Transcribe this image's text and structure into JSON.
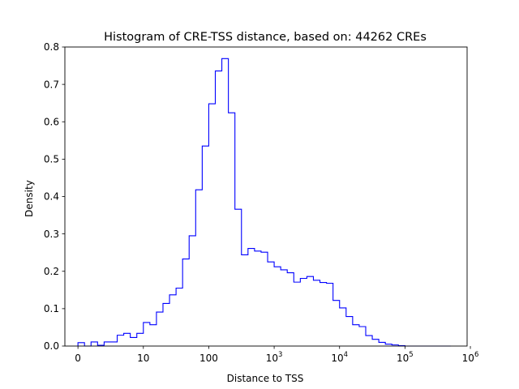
{
  "chart_data": {
    "type": "bar",
    "title": "Histogram of CRE-TSS distance, based on: 44262 CREs",
    "xlabel": "Distance to TSS",
    "ylabel": "Density",
    "ylim": [
      0,
      0.8
    ],
    "xlim": [
      -0.2,
      5.95
    ],
    "x_scale": "symlog",
    "histtype": "step",
    "color": "#0000ff",
    "grid": false,
    "x_ticks": [
      {
        "value": 0,
        "label": "0"
      },
      {
        "value": 10,
        "label": "10"
      },
      {
        "value": 100,
        "label": "100"
      },
      {
        "value": 1000,
        "label": "10",
        "exponent": "3"
      },
      {
        "value": 10000,
        "label": "10",
        "exponent": "4"
      },
      {
        "value": 100000,
        "label": "10",
        "exponent": "5"
      },
      {
        "value": 1000000,
        "label": "10",
        "exponent": "6"
      }
    ],
    "y_ticks": [
      "0.0",
      "0.1",
      "0.2",
      "0.3",
      "0.4",
      "0.5",
      "0.6",
      "0.7",
      "0.8"
    ],
    "bin_edges_log10": [
      0,
      0.1,
      0.2,
      0.3,
      0.4,
      0.5,
      0.6,
      0.7,
      0.8,
      0.9,
      1.0,
      1.1,
      1.2,
      1.3,
      1.4,
      1.5,
      1.6,
      1.7,
      1.8,
      1.9,
      2.0,
      2.1,
      2.2,
      2.3,
      2.4,
      2.5,
      2.6,
      2.7,
      2.8,
      2.9,
      3.0,
      3.1,
      3.2,
      3.3,
      3.4,
      3.5,
      3.6,
      3.7,
      3.8,
      3.9,
      4.0,
      4.1,
      4.2,
      4.3,
      4.4,
      4.5,
      4.6,
      4.7,
      4.8,
      4.9,
      5.0,
      5.1,
      5.2,
      5.3,
      5.4,
      5.5,
      5.6,
      5.7
    ],
    "values": [
      0.009,
      0.0,
      0.011,
      0.002,
      0.011,
      0.011,
      0.029,
      0.034,
      0.023,
      0.034,
      0.063,
      0.057,
      0.091,
      0.114,
      0.137,
      0.155,
      0.233,
      0.295,
      0.418,
      0.535,
      0.648,
      0.736,
      0.769,
      0.624,
      0.366,
      0.244,
      0.261,
      0.254,
      0.251,
      0.225,
      0.212,
      0.204,
      0.196,
      0.171,
      0.181,
      0.186,
      0.176,
      0.17,
      0.168,
      0.122,
      0.102,
      0.079,
      0.057,
      0.052,
      0.028,
      0.018,
      0.01,
      0.005,
      0.003,
      0.001,
      0.0,
      0.0,
      0.0,
      0.0,
      0.0,
      0.0,
      0.0
    ]
  }
}
